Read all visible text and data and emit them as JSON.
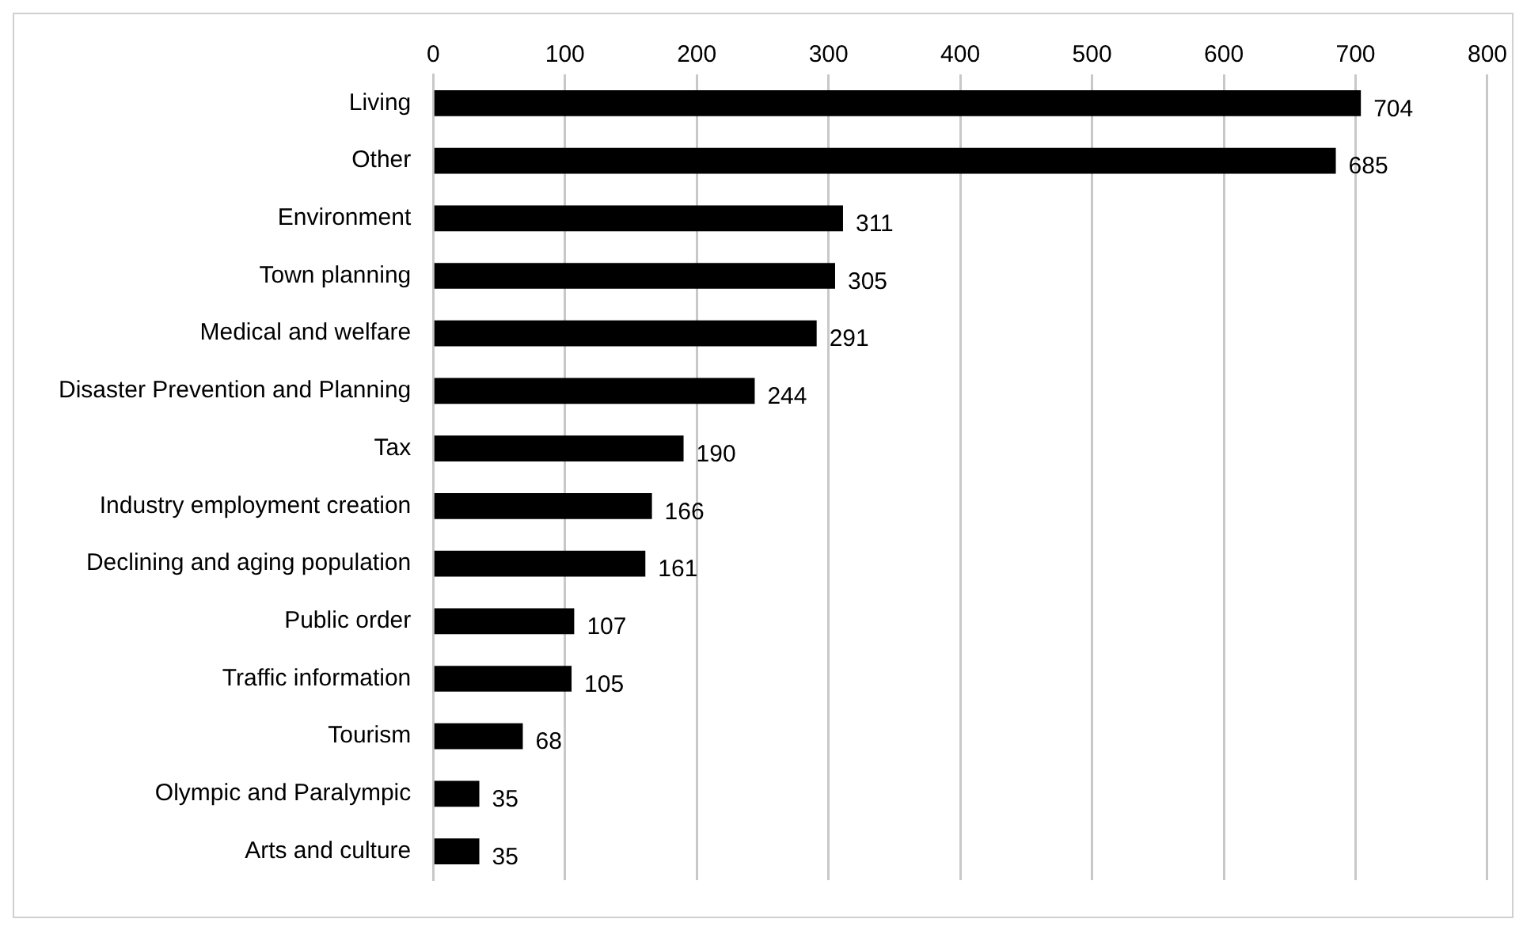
{
  "chart_data": {
    "type": "bar",
    "orientation": "horizontal",
    "categories": [
      "Living",
      "Other",
      "Environment",
      "Town planning",
      "Medical and welfare",
      "Disaster Prevention and Planning",
      "Tax",
      "Industry employment creation",
      "Declining and aging population",
      "Public order",
      "Traffic information",
      "Tourism",
      "Olympic and Paralympic",
      "Arts and culture"
    ],
    "values": [
      704,
      685,
      311,
      305,
      291,
      244,
      190,
      166,
      161,
      107,
      105,
      68,
      35,
      35
    ],
    "color": "#000000",
    "xlim": [
      0,
      800
    ],
    "xticks": [
      0,
      100,
      200,
      300,
      400,
      500,
      600,
      700,
      800
    ],
    "grid": "x",
    "data_labels": true,
    "legend": false
  }
}
